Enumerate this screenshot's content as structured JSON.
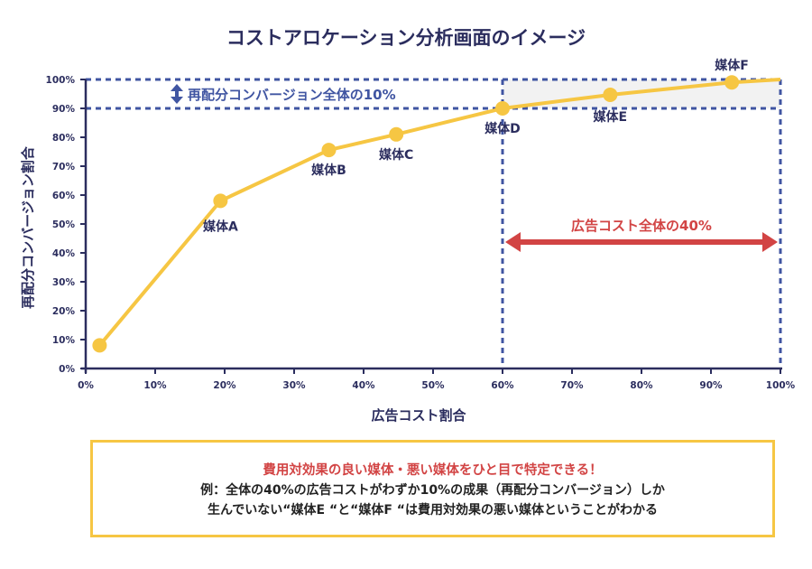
{
  "chart_data": {
    "type": "line",
    "title": "コストアロケーション分析画面のイメージ",
    "xlabel": "広告コスト割合",
    "ylabel": "再配分コンバージョン割合",
    "xlim": [
      0,
      100
    ],
    "ylim": [
      0,
      100
    ],
    "x_ticks": [
      "0%",
      "10%",
      "20%",
      "30%",
      "40%",
      "50%",
      "60%",
      "70%",
      "80%",
      "90%",
      "100%"
    ],
    "y_ticks": [
      "0%",
      "10%",
      "20%",
      "30%",
      "40%",
      "50%",
      "60%",
      "70%",
      "80%",
      "90%",
      "100%"
    ],
    "grid": false,
    "series": [
      {
        "name": "再配分コンバージョン割合",
        "color": "#f6c643",
        "points": [
          {
            "x": 2,
            "y": 8,
            "label": ""
          },
          {
            "x": 19.4,
            "y": 58,
            "label": "媒体A"
          },
          {
            "x": 35,
            "y": 75.6,
            "label": "媒体B"
          },
          {
            "x": 44.7,
            "y": 81,
            "label": "媒体C"
          },
          {
            "x": 60,
            "y": 90,
            "label": "媒体D"
          },
          {
            "x": 75.5,
            "y": 94.7,
            "label": "媒体E"
          },
          {
            "x": 93,
            "y": 99,
            "label": "媒体F"
          }
        ],
        "line_end": {
          "x": 100,
          "y": 100
        }
      }
    ],
    "annotations": {
      "conversion_band": {
        "y_from": 90,
        "y_to": 100,
        "label": "再配分コンバージョン全体の10%",
        "color": "#4055a2"
      },
      "cost_band": {
        "x_from": 60,
        "x_to": 100,
        "label": "広告コスト全体の40%",
        "color": "#d24444"
      },
      "highlight_fill": "#f2f2f2"
    },
    "axis_color": "#2b2d5e"
  },
  "note": {
    "headline": "費用対効果の良い媒体・悪い媒体をひと目で特定できる！",
    "line1": "例：全体の40%の広告コストがわずか10%の成果（再配分コンバージョン）しか",
    "line2": "生んでいない“媒体E “と“媒体F “は費用対効果の悪い媒体ということがわかる",
    "border_color": "#f6c643"
  }
}
